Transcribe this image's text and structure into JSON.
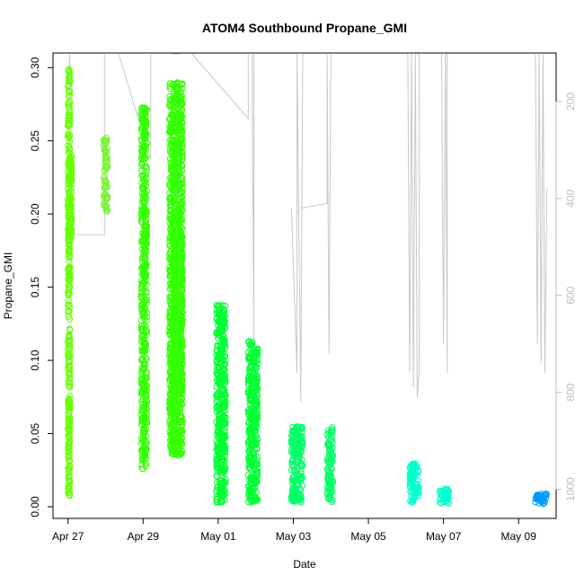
{
  "chart_data": {
    "type": "scatter",
    "title": "ATOM4 Southbound Propane_GMI",
    "xlabel": "Date",
    "ylabel": "Propane_GMI",
    "x_range_days": [
      -0.4,
      13.0
    ],
    "ylim": [
      -0.008,
      0.31
    ],
    "x_ticks": [
      {
        "label": "Apr 27",
        "day": 0
      },
      {
        "label": "Apr 29",
        "day": 2
      },
      {
        "label": "May 01",
        "day": 4
      },
      {
        "label": "May 03",
        "day": 6
      },
      {
        "label": "May 05",
        "day": 8
      },
      {
        "label": "May 07",
        "day": 10
      },
      {
        "label": "May 09",
        "day": 12
      }
    ],
    "y_ticks": [
      "0.00",
      "0.05",
      "0.10",
      "0.15",
      "0.20",
      "0.25",
      "0.30"
    ],
    "secondary_axis": {
      "ticks": [
        "200",
        "400",
        "600",
        "800",
        "1000"
      ],
      "range": [
        100,
        1060
      ],
      "reversed": true,
      "color": "#bdbdbd"
    },
    "grid": false,
    "series": [
      {
        "color": "#66ff00",
        "clusters": [
          {
            "x": [
              0.0,
              0.05
            ],
            "y": [
              0.007,
              0.3
            ]
          },
          {
            "x": [
              0.05,
              0.1
            ],
            "y": [
              0.18,
              0.24
            ]
          }
        ]
      },
      {
        "color": "#79f230",
        "clusters": [
          {
            "x": [
              0.95,
              1.05
            ],
            "y": [
              0.2,
              0.253
            ]
          }
        ]
      },
      {
        "color": "#33ff00",
        "clusters": [
          {
            "x": [
              1.95,
              2.1
            ],
            "y": [
              0.025,
              0.273
            ]
          },
          {
            "x": [
              2.7,
              3.05
            ],
            "y": [
              0.035,
              0.29
            ]
          },
          {
            "x": [
              2.85,
              3.05
            ],
            "y": [
              0.08,
              0.19
            ]
          }
        ]
      },
      {
        "color": "#00ff33",
        "clusters": [
          {
            "x": [
              3.95,
              4.2
            ],
            "y": [
              0.003,
              0.138
            ]
          },
          {
            "x": [
              4.8,
              5.05
            ],
            "y": [
              0.003,
              0.113
            ]
          }
        ]
      },
      {
        "color": "#00ff66",
        "clusters": [
          {
            "x": [
              5.95,
              6.25
            ],
            "y": [
              0.003,
              0.055
            ]
          },
          {
            "x": [
              6.9,
              7.05
            ],
            "y": [
              0.003,
              0.055
            ]
          }
        ]
      },
      {
        "color": "#00ffcc",
        "clusters": [
          {
            "x": [
              9.1,
              9.35
            ],
            "y": [
              0.003,
              0.03
            ]
          },
          {
            "x": [
              9.9,
              10.15
            ],
            "y": [
              0.002,
              0.012
            ]
          }
        ]
      },
      {
        "color": "#0099ff",
        "clusters": [
          {
            "x": [
              12.45,
              12.75
            ],
            "y": [
              0.002,
              0.009
            ]
          }
        ]
      }
    ],
    "altitude_trace": {
      "color": "#c8c8c8",
      "segments": [
        [
          [
            0.0,
            160
          ],
          [
            0.05,
            100
          ],
          [
            0.0,
            475
          ],
          [
            0.97,
            475
          ],
          [
            0.97,
            100
          ]
        ],
        [
          [
            1.35,
            100
          ],
          [
            2.2,
            320
          ],
          [
            2.2,
            100
          ]
        ],
        [
          [
            2.75,
            100
          ],
          [
            3.0,
            100
          ]
        ],
        [
          [
            3.3,
            100
          ],
          [
            4.8,
            235
          ],
          [
            4.8,
            100
          ]
        ],
        [
          [
            4.9,
            100
          ],
          [
            4.95,
            700
          ],
          [
            4.95,
            100
          ]
        ],
        [
          [
            5.95,
            420
          ],
          [
            6.1,
            760
          ],
          [
            6.1,
            100
          ],
          [
            6.2,
            820
          ],
          [
            6.25,
            100
          ]
        ],
        [
          [
            6.2,
            420
          ],
          [
            6.9,
            410
          ],
          [
            6.9,
            100
          ],
          [
            6.95,
            720
          ],
          [
            7.0,
            100
          ]
        ],
        [
          [
            9.05,
            100
          ],
          [
            9.1,
            760
          ],
          [
            9.15,
            100
          ],
          [
            9.2,
            790
          ],
          [
            9.25,
            100
          ],
          [
            9.3,
            810
          ],
          [
            9.35,
            760
          ],
          [
            9.35,
            100
          ]
        ],
        [
          [
            9.95,
            100
          ],
          [
            10.0,
            700
          ],
          [
            10.05,
            100
          ],
          [
            10.1,
            760
          ],
          [
            10.1,
            100
          ]
        ],
        [
          [
            12.45,
            100
          ],
          [
            12.5,
            700
          ],
          [
            12.55,
            100
          ],
          [
            12.6,
            740
          ],
          [
            12.65,
            100
          ],
          [
            12.7,
            760
          ],
          [
            12.75,
            380
          ]
        ]
      ]
    }
  }
}
